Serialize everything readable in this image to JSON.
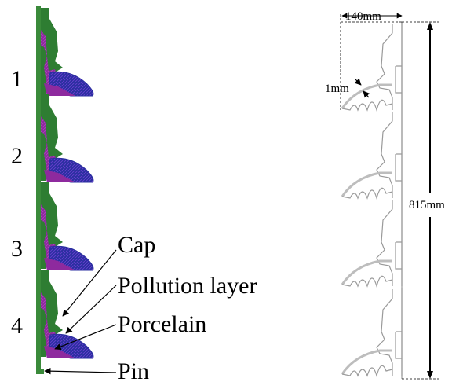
{
  "units": [
    "1",
    "2",
    "3",
    "4"
  ],
  "callouts": {
    "cap": "Cap",
    "pollution_layer": "Pollution layer",
    "porcelain": "Porcelain",
    "pin": "Pin"
  },
  "dimensions": {
    "width": "140mm",
    "thickness": "1mm",
    "height": "815mm"
  },
  "colors": {
    "cap": "#2e7d32",
    "porcelain": "#8e2a9e",
    "pollution": "#2b2fa0",
    "pin": "#3a8a3a",
    "outline": "#9a9a9a"
  }
}
